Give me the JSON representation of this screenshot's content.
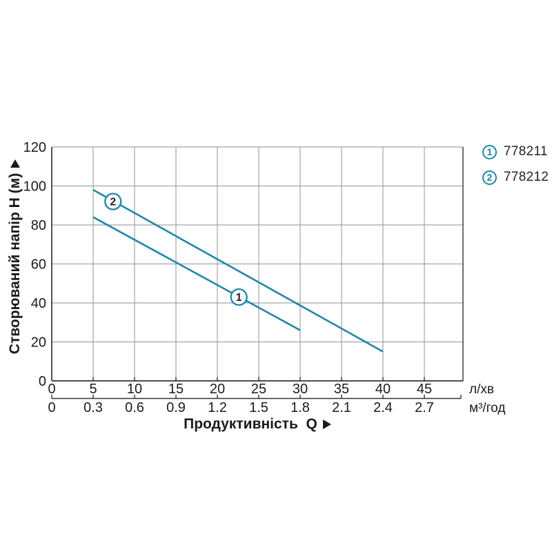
{
  "page": {
    "background": "#ffffff"
  },
  "legend": {
    "items": [
      {
        "marker": "1",
        "label": "778211"
      },
      {
        "marker": "2",
        "label": "778212"
      }
    ]
  },
  "colors": {
    "series_line": "#1f87a6",
    "grid": "#a4a4a4",
    "axis": "#333333",
    "text": "#1b1b1b"
  },
  "chart_data": {
    "type": "line",
    "title": "",
    "xlabel": "Продуктивність  Q",
    "ylabel": "Створюваний напір H (м)",
    "x_unit_primary": "л/хв",
    "x_unit_secondary": "м³/год",
    "x_ticks_primary": [
      0,
      5,
      10,
      15,
      20,
      25,
      30,
      35,
      40,
      45
    ],
    "x_ticks_secondary": [
      "0",
      "0.3",
      "0.6",
      "0.9",
      "1.2",
      "1.5",
      "1.8",
      "2.1",
      "2.4",
      "2.7"
    ],
    "y_ticks": [
      0,
      20,
      40,
      60,
      80,
      100,
      120
    ],
    "xlim": [
      0,
      49.7
    ],
    "ylim": [
      0,
      120
    ],
    "grid": true,
    "legend_position": "top-right-outside",
    "series": [
      {
        "marker_label": "1",
        "name": "778211",
        "color": "#1f87a6",
        "points": [
          [
            5,
            84
          ],
          [
            30,
            26
          ]
        ],
        "marker_pos": [
          22.6,
          43
        ]
      },
      {
        "marker_label": "2",
        "name": "778212",
        "color": "#1f87a6",
        "points": [
          [
            5,
            98
          ],
          [
            40,
            15
          ]
        ],
        "marker_pos": [
          7.4,
          92
        ]
      }
    ]
  }
}
